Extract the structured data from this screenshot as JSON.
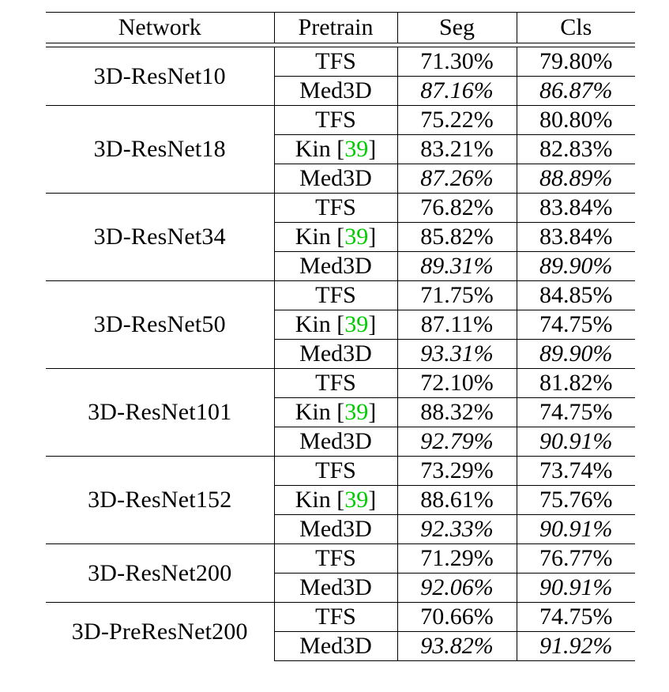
{
  "header": {
    "network": "Network",
    "pretrain": "Pretrain",
    "seg": "Seg",
    "cls": "Cls"
  },
  "groups": [
    {
      "network": "3D-ResNet10",
      "rows": [
        {
          "pretrain": "TFS",
          "cite": "",
          "seg": "71.30%",
          "cls": "79.80%",
          "bold": false
        },
        {
          "pretrain": "Med3D",
          "cite": "",
          "seg": "87.16%",
          "cls": "86.87%",
          "bold": true
        }
      ]
    },
    {
      "network": "3D-ResNet18",
      "rows": [
        {
          "pretrain": "TFS",
          "cite": "",
          "seg": "75.22%",
          "cls": "80.80%",
          "bold": false
        },
        {
          "pretrain": "Kin [",
          "cite": "39",
          "seg": "83.21%",
          "cls": "82.83%",
          "bold": false
        },
        {
          "pretrain": "Med3D",
          "cite": "",
          "seg": "87.26%",
          "cls": "88.89%",
          "bold": true
        }
      ]
    },
    {
      "network": "3D-ResNet34",
      "rows": [
        {
          "pretrain": "TFS",
          "cite": "",
          "seg": "76.82%",
          "cls": "83.84%",
          "bold": false
        },
        {
          "pretrain": "Kin [",
          "cite": "39",
          "seg": "85.82%",
          "cls": "83.84%",
          "bold": false
        },
        {
          "pretrain": "Med3D",
          "cite": "",
          "seg": "89.31%",
          "cls": "89.90%",
          "bold": true
        }
      ]
    },
    {
      "network": "3D-ResNet50",
      "rows": [
        {
          "pretrain": "TFS",
          "cite": "",
          "seg": "71.75%",
          "cls": "84.85%",
          "bold": false
        },
        {
          "pretrain": "Kin [",
          "cite": "39",
          "seg": "87.11%",
          "cls": "74.75%",
          "bold": false
        },
        {
          "pretrain": "Med3D",
          "cite": "",
          "seg": "93.31%",
          "cls": "89.90%",
          "bold": true
        }
      ]
    },
    {
      "network": "3D-ResNet101",
      "rows": [
        {
          "pretrain": "TFS",
          "cite": "",
          "seg": "72.10%",
          "cls": "81.82%",
          "bold": false
        },
        {
          "pretrain": "Kin [",
          "cite": "39",
          "seg": "88.32%",
          "cls": "74.75%",
          "bold": false
        },
        {
          "pretrain": "Med3D",
          "cite": "",
          "seg": "92.79%",
          "cls": "90.91%",
          "bold": true
        }
      ]
    },
    {
      "network": "3D-ResNet152",
      "rows": [
        {
          "pretrain": "TFS",
          "cite": "",
          "seg": "73.29%",
          "cls": "73.74%",
          "bold": false
        },
        {
          "pretrain": "Kin [",
          "cite": "39",
          "seg": "88.61%",
          "cls": "75.76%",
          "bold": false
        },
        {
          "pretrain": "Med3D",
          "cite": "",
          "seg": "92.33%",
          "cls": "90.91%",
          "bold": true
        }
      ]
    },
    {
      "network": "3D-ResNet200",
      "rows": [
        {
          "pretrain": "TFS",
          "cite": "",
          "seg": "71.29%",
          "cls": "76.77%",
          "bold": false
        },
        {
          "pretrain": "Med3D",
          "cite": "",
          "seg": "92.06%",
          "cls": "90.91%",
          "bold": true
        }
      ]
    },
    {
      "network": "3D-PreResNet200",
      "rows": [
        {
          "pretrain": "TFS",
          "cite": "",
          "seg": "70.66%",
          "cls": "74.75%",
          "bold": false
        },
        {
          "pretrain": "Med3D",
          "cite": "",
          "seg": "93.82%",
          "cls": "91.92%",
          "bold": true
        }
      ]
    }
  ],
  "colors": {
    "citation": "#00cc00",
    "rule": "#000000"
  }
}
